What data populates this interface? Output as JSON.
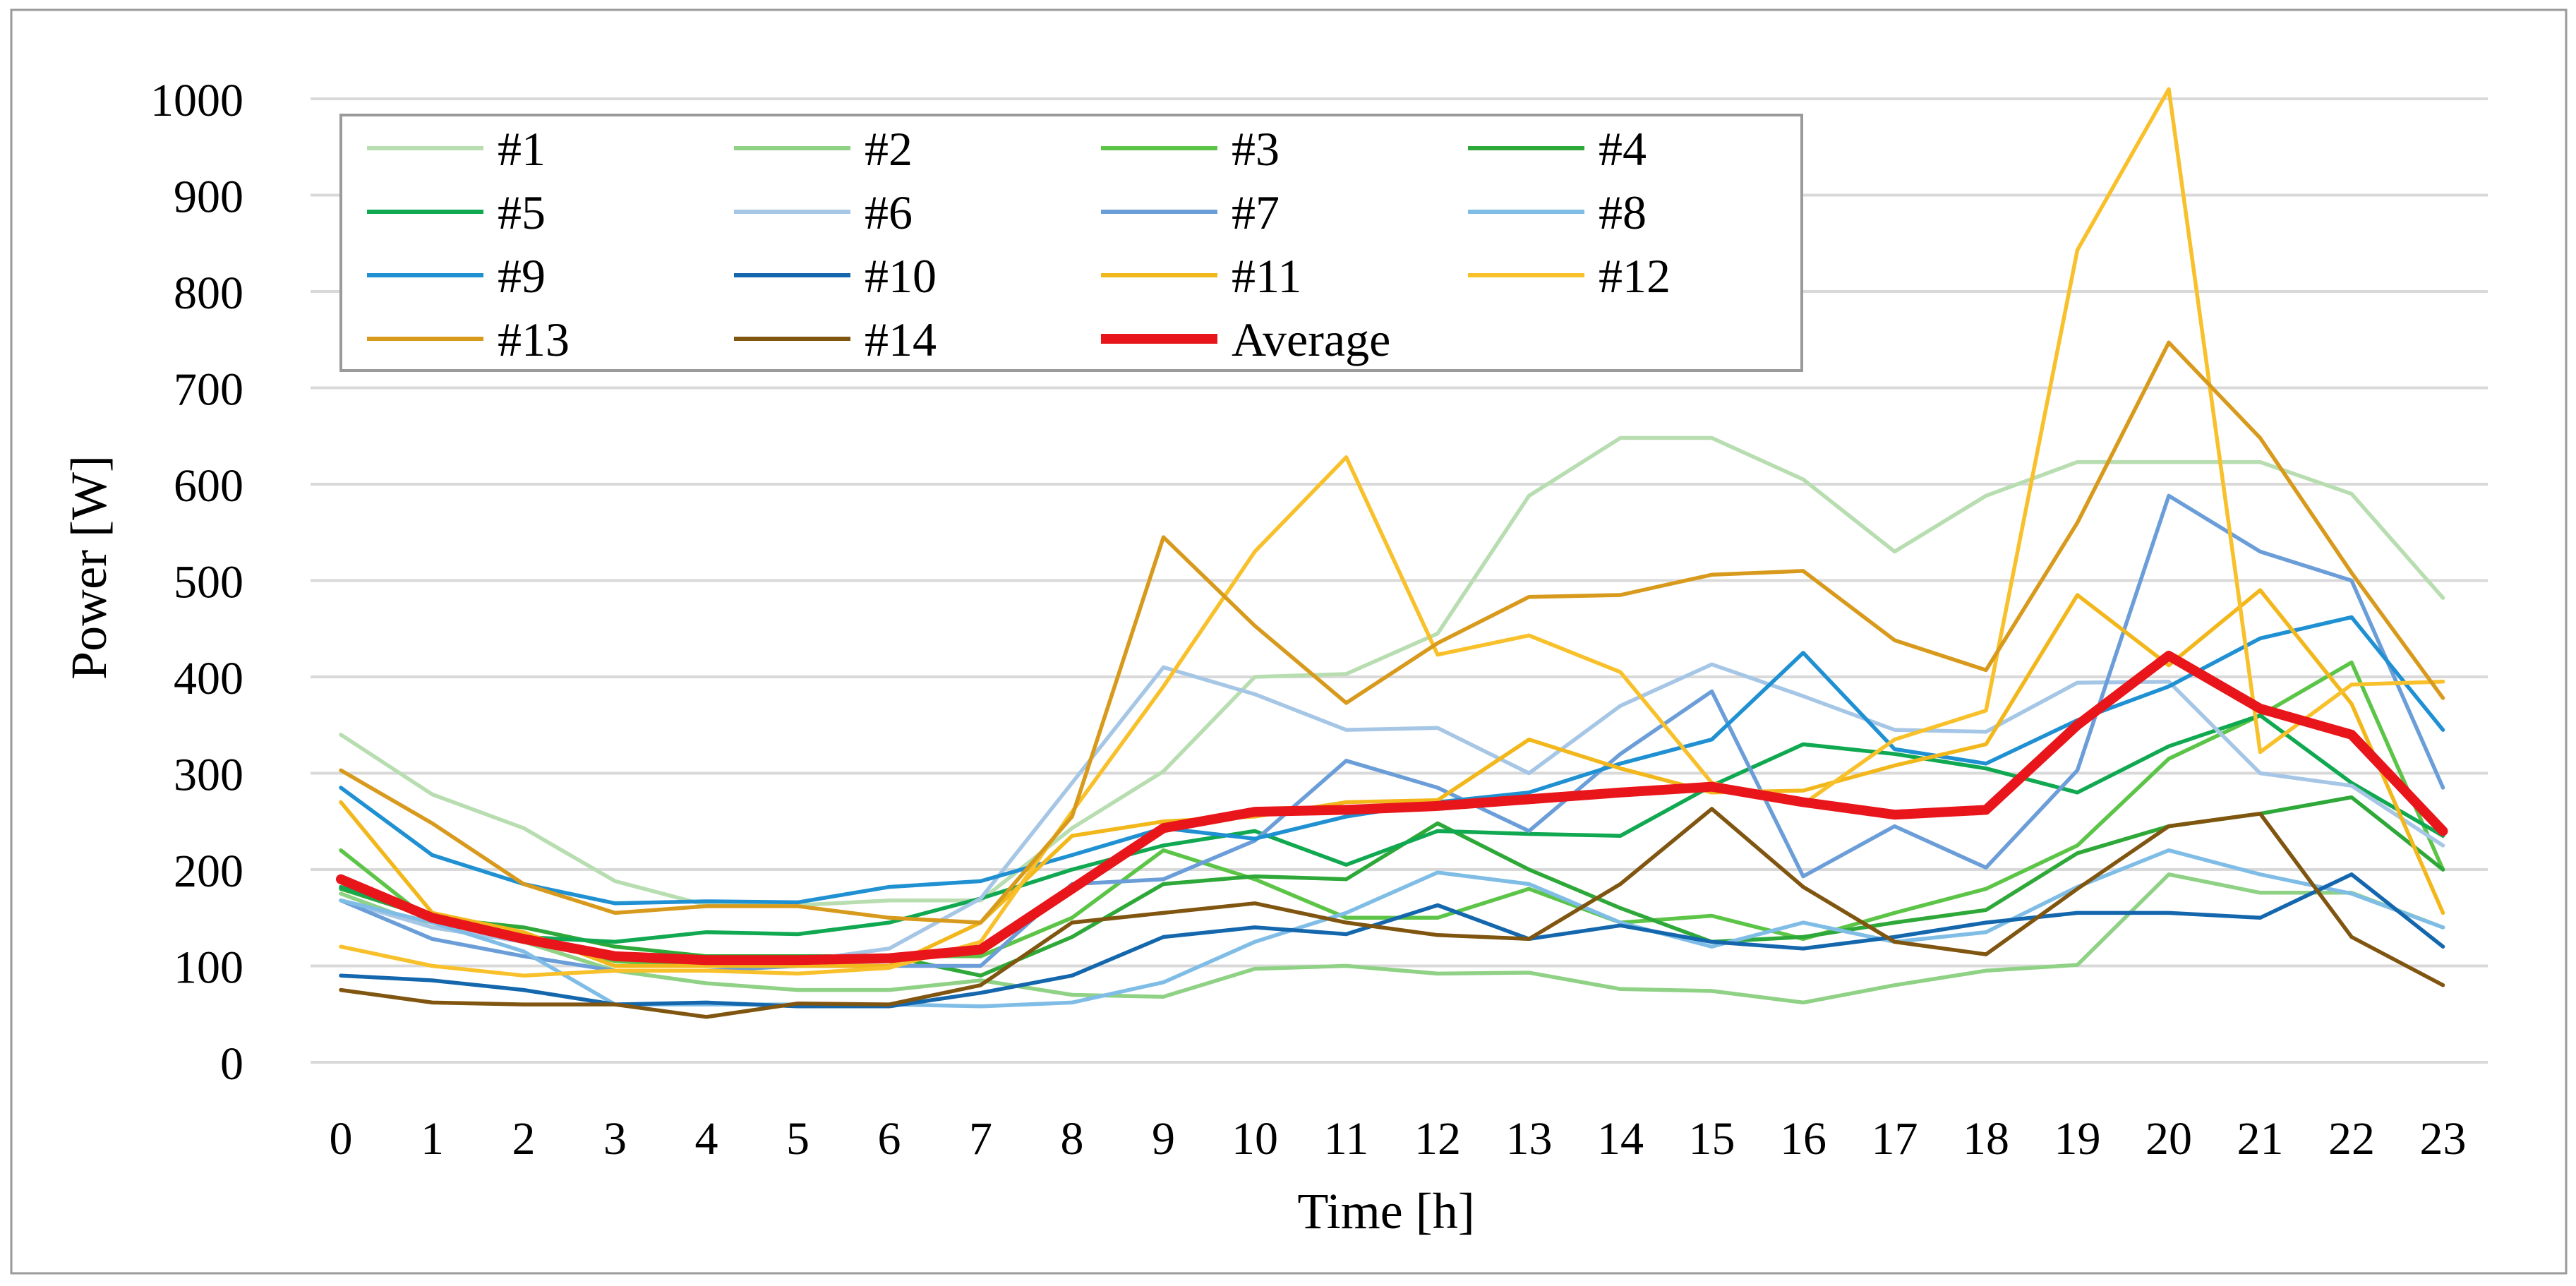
{
  "chart_data": {
    "type": "line",
    "title": "",
    "xlabel": "Time [h]",
    "ylabel": "Power [W]",
    "ylim": [
      0,
      1000
    ],
    "yticks": [
      "0",
      "100",
      "200",
      "300",
      "400",
      "500",
      "600",
      "700",
      "800",
      "900",
      "1000"
    ],
    "grid": true,
    "legend_position": "top-left",
    "categories": [
      "0",
      "1",
      "2",
      "3",
      "4",
      "5",
      "6",
      "7",
      "8",
      "9",
      "10",
      "11",
      "12",
      "13",
      "14",
      "15",
      "16",
      "17",
      "18",
      "19",
      "20",
      "21",
      "22",
      "23"
    ],
    "series": [
      {
        "name": "#1",
        "color": "#b7ddb0",
        "width": "thin",
        "values": [
          340,
          278,
          243,
          188,
          163,
          163,
          168,
          168,
          243,
          302,
          400,
          403,
          445,
          588,
          648,
          648,
          605,
          530,
          588,
          623,
          623,
          623,
          590,
          482
        ]
      },
      {
        "name": "#2",
        "color": "#8fd185",
        "width": "thin",
        "values": [
          175,
          140,
          125,
          95,
          82,
          75,
          75,
          85,
          70,
          68,
          97,
          100,
          92,
          93,
          76,
          74,
          62,
          80,
          95,
          101,
          195,
          176,
          176,
          140
        ]
      },
      {
        "name": "#3",
        "color": "#5cc447",
        "width": "thin",
        "values": [
          220,
          145,
          130,
          105,
          100,
          110,
          110,
          110,
          150,
          220,
          190,
          150,
          150,
          180,
          145,
          152,
          128,
          155,
          180,
          225,
          315,
          360,
          415,
          200
        ]
      },
      {
        "name": "#4",
        "color": "#2ea838",
        "width": "thin",
        "values": [
          180,
          150,
          140,
          120,
          110,
          110,
          110,
          90,
          130,
          185,
          193,
          190,
          248,
          200,
          160,
          125,
          130,
          145,
          158,
          217,
          245,
          258,
          275,
          200
        ]
      },
      {
        "name": "#5",
        "color": "#10a850",
        "width": "thin",
        "values": [
          182,
          150,
          130,
          125,
          135,
          133,
          145,
          170,
          200,
          225,
          240,
          205,
          240,
          237,
          235,
          287,
          330,
          320,
          305,
          280,
          328,
          360,
          290,
          235
        ]
      },
      {
        "name": "#6",
        "color": "#a6c6e6",
        "width": "thin",
        "values": [
          168,
          140,
          125,
          110,
          105,
          105,
          118,
          170,
          290,
          410,
          382,
          345,
          347,
          300,
          370,
          413,
          380,
          345,
          343,
          394,
          395,
          300,
          287,
          225
        ]
      },
      {
        "name": "#7",
        "color": "#6b9ed8",
        "width": "thin",
        "values": [
          168,
          128,
          110,
          95,
          95,
          100,
          100,
          100,
          185,
          190,
          230,
          313,
          285,
          240,
          320,
          385,
          193,
          245,
          202,
          303,
          588,
          530,
          500,
          285
        ]
      },
      {
        "name": "#8",
        "color": "#7fbde6",
        "width": "thin",
        "values": [
          168,
          145,
          115,
          60,
          60,
          60,
          60,
          58,
          62,
          83,
          125,
          155,
          197,
          185,
          145,
          120,
          145,
          125,
          135,
          182,
          220,
          195,
          175,
          140
        ]
      },
      {
        "name": "#9",
        "color": "#1f90d2",
        "width": "thin",
        "values": [
          285,
          215,
          185,
          165,
          167,
          166,
          182,
          188,
          215,
          243,
          232,
          255,
          270,
          280,
          310,
          335,
          425,
          325,
          310,
          355,
          390,
          440,
          462,
          345
        ]
      },
      {
        "name": "#10",
        "color": "#1467ad",
        "width": "thin",
        "values": [
          90,
          85,
          75,
          60,
          62,
          58,
          58,
          72,
          90,
          130,
          140,
          133,
          163,
          128,
          142,
          125,
          118,
          130,
          145,
          155,
          155,
          150,
          195,
          120
        ]
      },
      {
        "name": "#11",
        "color": "#f2b71b",
        "width": "thin",
        "values": [
          270,
          155,
          135,
          100,
          100,
          100,
          100,
          145,
          235,
          250,
          255,
          270,
          272,
          335,
          305,
          280,
          282,
          308,
          330,
          485,
          412,
          490,
          372,
          155
        ]
      },
      {
        "name": "#12",
        "color": "#f8c02a",
        "width": "thin",
        "values": [
          120,
          100,
          90,
          95,
          95,
          92,
          98,
          125,
          260,
          390,
          530,
          628,
          423,
          443,
          405,
          290,
          268,
          335,
          365,
          843,
          1010,
          322,
          392,
          395
        ]
      },
      {
        "name": "#13",
        "color": "#d89a1c",
        "width": "thin",
        "values": [
          303,
          248,
          185,
          155,
          162,
          162,
          150,
          145,
          255,
          545,
          453,
          373,
          435,
          483,
          485,
          506,
          510,
          438,
          407,
          560,
          747,
          648,
          508,
          378
        ]
      },
      {
        "name": "#14",
        "color": "#7f5510",
        "width": "thin",
        "values": [
          75,
          62,
          60,
          60,
          47,
          61,
          60,
          80,
          145,
          155,
          165,
          145,
          132,
          128,
          185,
          263,
          182,
          125,
          112,
          180,
          245,
          258,
          130,
          80
        ]
      },
      {
        "name": "Average",
        "color": "#e8161b",
        "width": "thick",
        "values": [
          190,
          150,
          128,
          110,
          106,
          106,
          108,
          117,
          180,
          243,
          260,
          262,
          266,
          273,
          280,
          286,
          270,
          257,
          262,
          350,
          422,
          367,
          340,
          240
        ]
      }
    ]
  }
}
